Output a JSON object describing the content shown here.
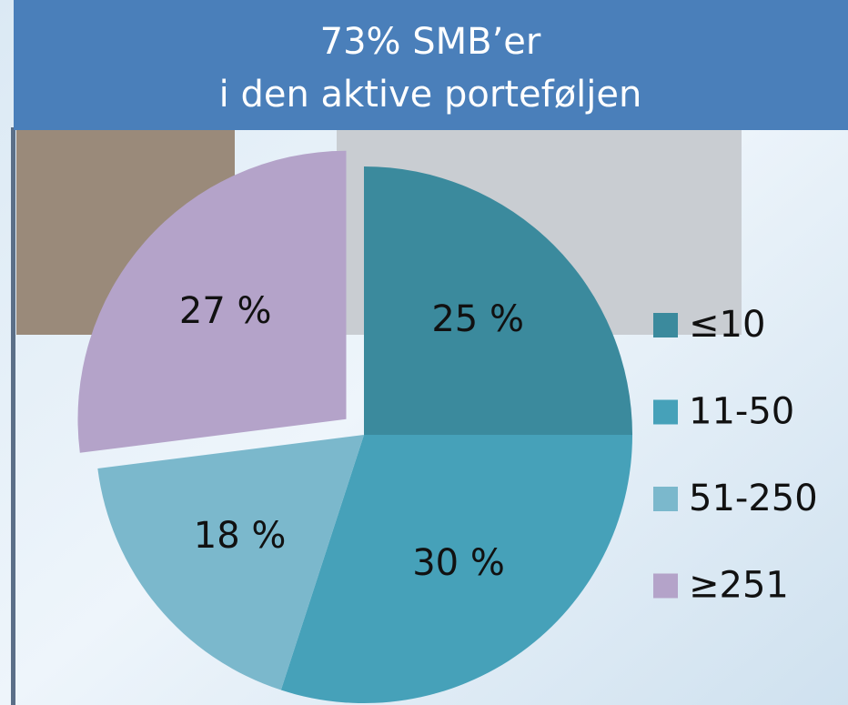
{
  "chart_data": {
    "type": "pie",
    "title": "73% SMB’er",
    "subtitle": "i den aktive porteføljen",
    "categories": [
      "≤10",
      "11-50",
      "51-250",
      "≥251"
    ],
    "values": [
      25,
      30,
      18,
      27
    ],
    "value_labels": [
      "25 %",
      "30 %",
      "18 %",
      "27 %"
    ],
    "colors": [
      "#3b8a9d",
      "#46a1b9",
      "#7bb8cc",
      "#b4a3c9"
    ],
    "explode": [
      false,
      false,
      false,
      true
    ],
    "legend": "right"
  }
}
